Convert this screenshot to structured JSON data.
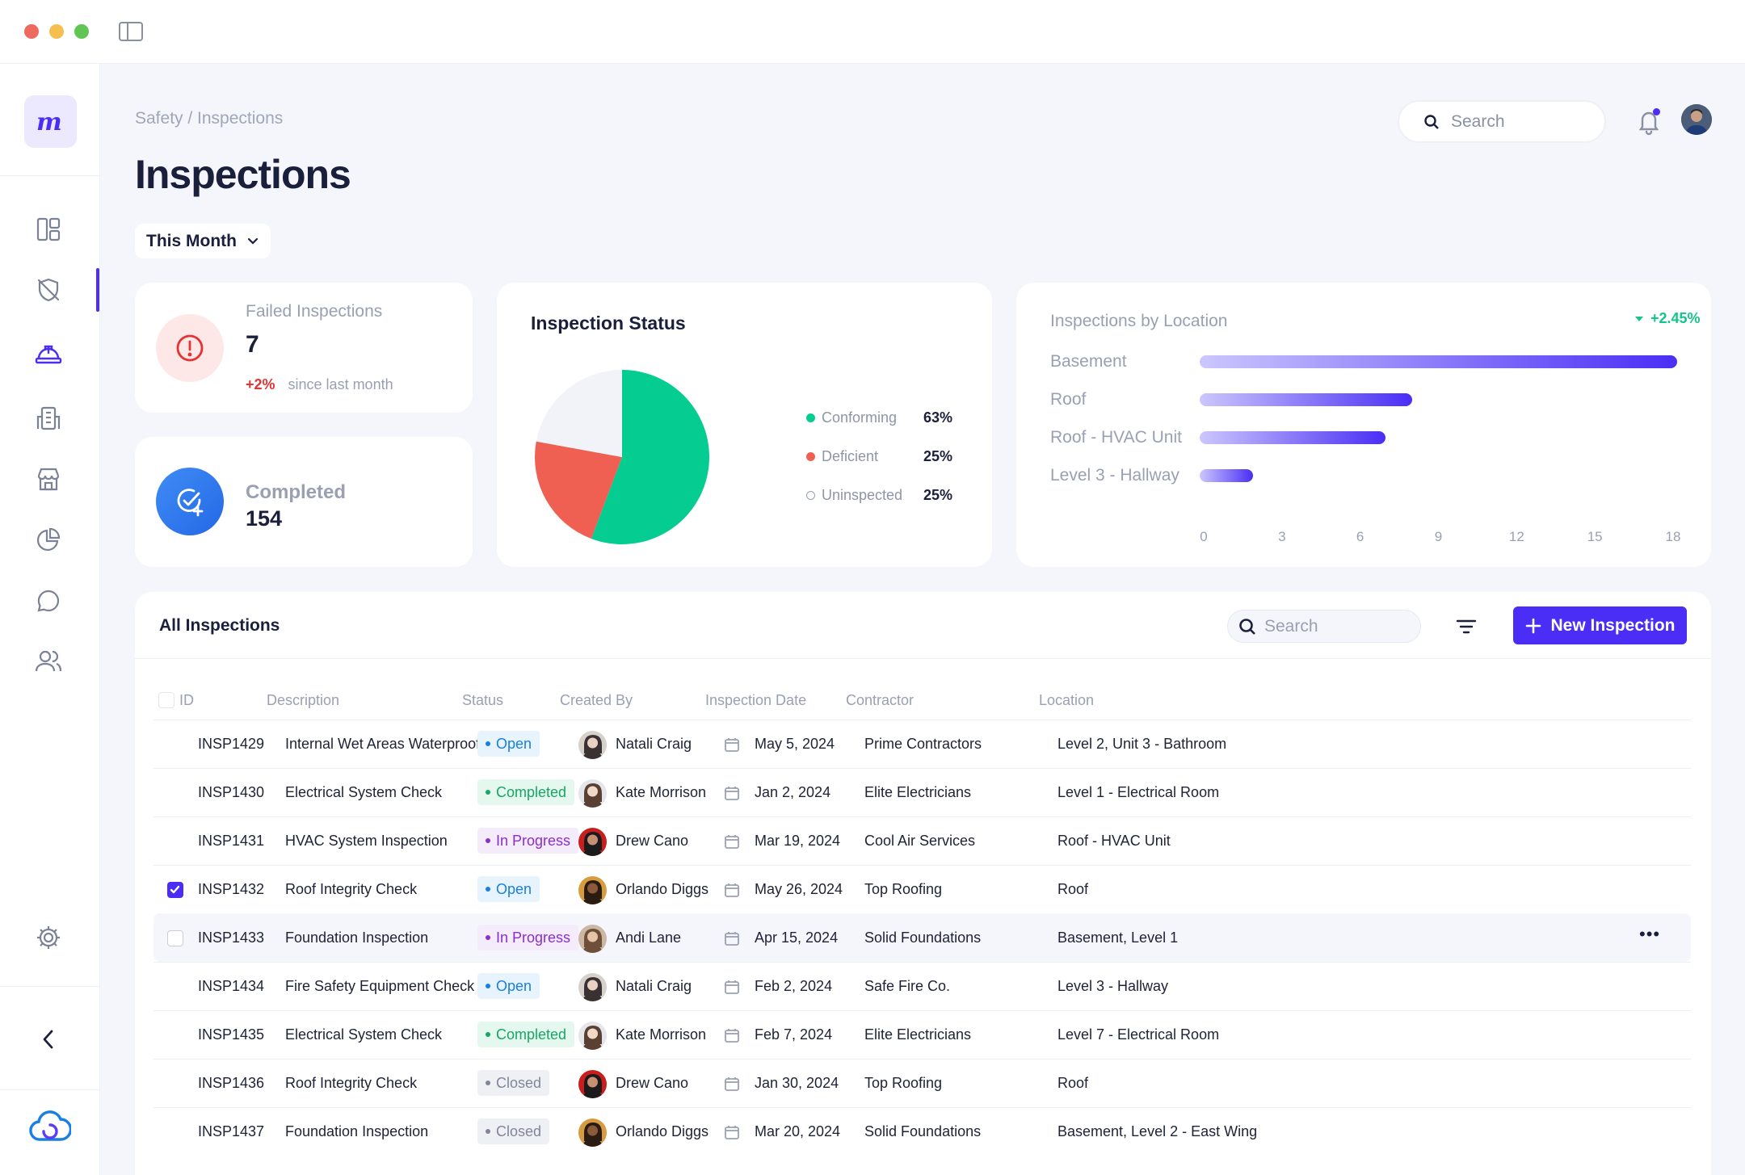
{
  "window": {
    "dot_colors": [
      "#ed6a5e",
      "#f5bf4f",
      "#61c554"
    ]
  },
  "breadcrumb": "Safety / Inspections",
  "page_title": "Inspections",
  "period_filter": "This Month",
  "search": {
    "placeholder": "Search"
  },
  "kpis": {
    "failed": {
      "label": "Failed Inspections",
      "value": "7",
      "change": "+2%",
      "change_note": "since last month"
    },
    "completed": {
      "label": "Completed",
      "value": "154"
    }
  },
  "status_card": {
    "title": "Inspection Status"
  },
  "location_card": {
    "title": "Inspections by Location",
    "change": "+2.45%"
  },
  "table": {
    "title": "All Inspections",
    "search_placeholder": "Search",
    "new_button": "New Inspection",
    "columns": [
      "ID",
      "Description",
      "Status",
      "Created By",
      "Inspection Date",
      "Contractor",
      "Location"
    ],
    "rows": [
      {
        "id": "INSP1429",
        "description": "Internal Wet Areas Waterproofing",
        "status": "Open",
        "created_by": "Natali Craig",
        "date": "May 5, 2024",
        "contractor": "Prime Contractors",
        "location": "Level 2, Unit 3 - Bathroom"
      },
      {
        "id": "INSP1430",
        "description": "Electrical System Check",
        "status": "Completed",
        "created_by": "Kate Morrison",
        "date": "Jan 2, 2024",
        "contractor": "Elite Electricians",
        "location": "Level 1 - Electrical Room"
      },
      {
        "id": "INSP1431",
        "description": "HVAC System Inspection",
        "status": "In Progress",
        "created_by": "Drew Cano",
        "date": "Mar 19, 2024",
        "contractor": "Cool Air Services",
        "location": "Roof - HVAC Unit"
      },
      {
        "id": "INSP1432",
        "description": "Roof Integrity Check",
        "status": "Open",
        "created_by": "Orlando Diggs",
        "date": "May 26, 2024",
        "contractor": "Top Roofing",
        "location": "Roof"
      },
      {
        "id": "INSP1433",
        "description": "Foundation Inspection",
        "status": "In Progress",
        "created_by": "Andi Lane",
        "date": "Apr 15, 2024",
        "contractor": "Solid Foundations",
        "location": "Basement, Level 1"
      },
      {
        "id": "INSP1434",
        "description": "Fire Safety Equipment Check",
        "status": "Open",
        "created_by": "Natali Craig",
        "date": "Feb 2, 2024",
        "contractor": "Safe Fire Co.",
        "location": "Level 3 - Hallway"
      },
      {
        "id": "INSP1435",
        "description": "Electrical System Check",
        "status": "Completed",
        "created_by": "Kate Morrison",
        "date": "Feb 7, 2024",
        "contractor": "Elite Electricians",
        "location": "Level 7 - Electrical Room"
      },
      {
        "id": "INSP1436",
        "description": "Roof Integrity Check",
        "status": "Closed",
        "created_by": "Drew Cano",
        "date": "Jan 30, 2024",
        "contractor": "Top Roofing",
        "location": "Roof"
      },
      {
        "id": "INSP1437",
        "description": "Foundation Inspection",
        "status": "Closed",
        "created_by": "Orlando Diggs",
        "date": "Mar 20, 2024",
        "contractor": "Solid Foundations",
        "location": "Basement, Level 2 - East Wing"
      }
    ]
  },
  "chart_data": [
    {
      "type": "pie",
      "title": "Inspection Status",
      "categories": [
        "Conforming",
        "Deficient",
        "Uninspected"
      ],
      "values": [
        63,
        25,
        25
      ],
      "labels": [
        "63%",
        "25%",
        "25%"
      ],
      "colors": [
        "#05cd92",
        "#ef5f52",
        "#f1f3f8"
      ]
    },
    {
      "type": "bar",
      "orientation": "horizontal",
      "title": "Inspections by Location",
      "categories": [
        "Basement",
        "Roof",
        "Roof - HVAC Unit",
        "Level 3 - Hallway"
      ],
      "values": [
        18,
        8,
        7,
        2
      ],
      "xticks": [
        "0",
        "3",
        "6",
        "9",
        "12",
        "15",
        "18"
      ],
      "xlim": [
        0,
        18
      ]
    }
  ]
}
